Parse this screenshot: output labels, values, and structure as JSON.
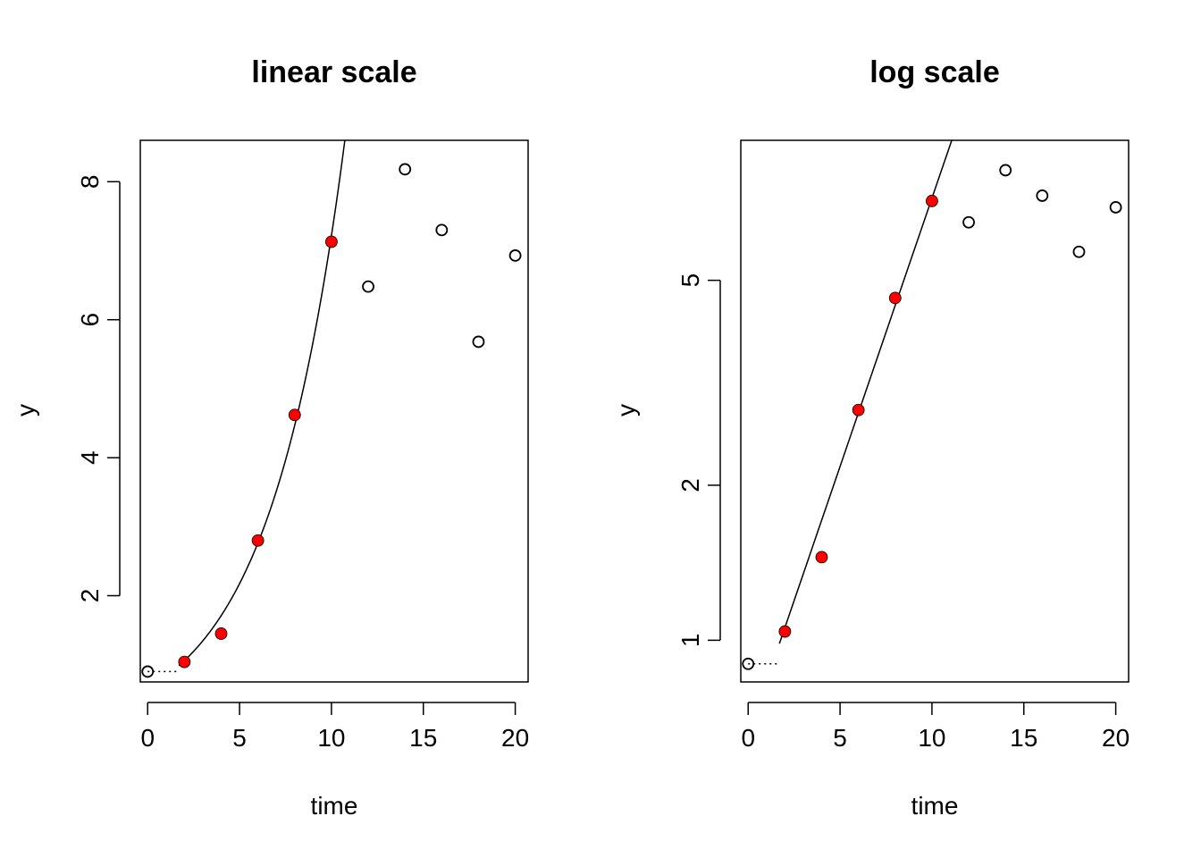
{
  "chart_data": [
    {
      "type": "scatter",
      "title": "linear scale",
      "xlabel": "time",
      "ylabel": "y",
      "y_scale": "linear",
      "xlim": [
        -0.4,
        20.7
      ],
      "ylim": [
        0.75,
        8.6
      ],
      "x_ticks": [
        0,
        5,
        10,
        15,
        20
      ],
      "x_tick_labels": [
        "0",
        "5",
        "10",
        "15",
        "20"
      ],
      "y_ticks": [
        2,
        4,
        6,
        8
      ],
      "y_tick_labels": [
        "2",
        "4",
        "6",
        "8"
      ],
      "grid": false,
      "series": [
        {
          "marker": "filled-circle",
          "color": "#ff0000",
          "points": [
            [
              2,
              1.04
            ],
            [
              4,
              1.45
            ],
            [
              6,
              2.8
            ],
            [
              8,
              4.62
            ],
            [
              10,
              7.13
            ]
          ]
        },
        {
          "marker": "open-circle",
          "color": "#000000",
          "points": [
            [
              0,
              0.9
            ],
            [
              12,
              6.48
            ],
            [
              14,
              8.18
            ],
            [
              16,
              7.3
            ],
            [
              18,
              5.68
            ],
            [
              20,
              6.93
            ]
          ]
        }
      ],
      "fit_curve": {
        "type": "exponential",
        "y0": 0.655,
        "rate": 0.24,
        "x_start": 1.7,
        "style": "solid"
      },
      "baseline_segment": {
        "y": 0.9,
        "x_from": 0,
        "x_to": 1.7,
        "style": "dotted"
      }
    },
    {
      "type": "scatter",
      "title": "log scale",
      "xlabel": "time",
      "ylabel": "y",
      "y_scale": "log",
      "xlim": [
        -0.4,
        20.7
      ],
      "ylim": [
        0.83,
        9.35
      ],
      "x_ticks": [
        0,
        5,
        10,
        15,
        20
      ],
      "x_tick_labels": [
        "0",
        "5",
        "10",
        "15",
        "20"
      ],
      "y_ticks": [
        1,
        2,
        5
      ],
      "y_tick_labels": [
        "1",
        "2",
        "5"
      ],
      "grid": false,
      "series": [
        {
          "marker": "filled-circle",
          "color": "#ff0000",
          "points": [
            [
              2,
              1.04
            ],
            [
              4,
              1.45
            ],
            [
              6,
              2.8
            ],
            [
              8,
              4.62
            ],
            [
              10,
              7.13
            ]
          ]
        },
        {
          "marker": "open-circle",
          "color": "#000000",
          "points": [
            [
              0,
              0.9
            ],
            [
              12,
              6.48
            ],
            [
              14,
              8.18
            ],
            [
              16,
              7.3
            ],
            [
              18,
              5.68
            ],
            [
              20,
              6.93
            ]
          ]
        }
      ],
      "fit_curve": {
        "type": "exponential",
        "y0": 0.655,
        "rate": 0.24,
        "x_start": 1.7,
        "style": "solid"
      },
      "baseline_segment": {
        "y": 0.9,
        "x_from": 0,
        "x_to": 1.7,
        "style": "dotted"
      }
    }
  ]
}
